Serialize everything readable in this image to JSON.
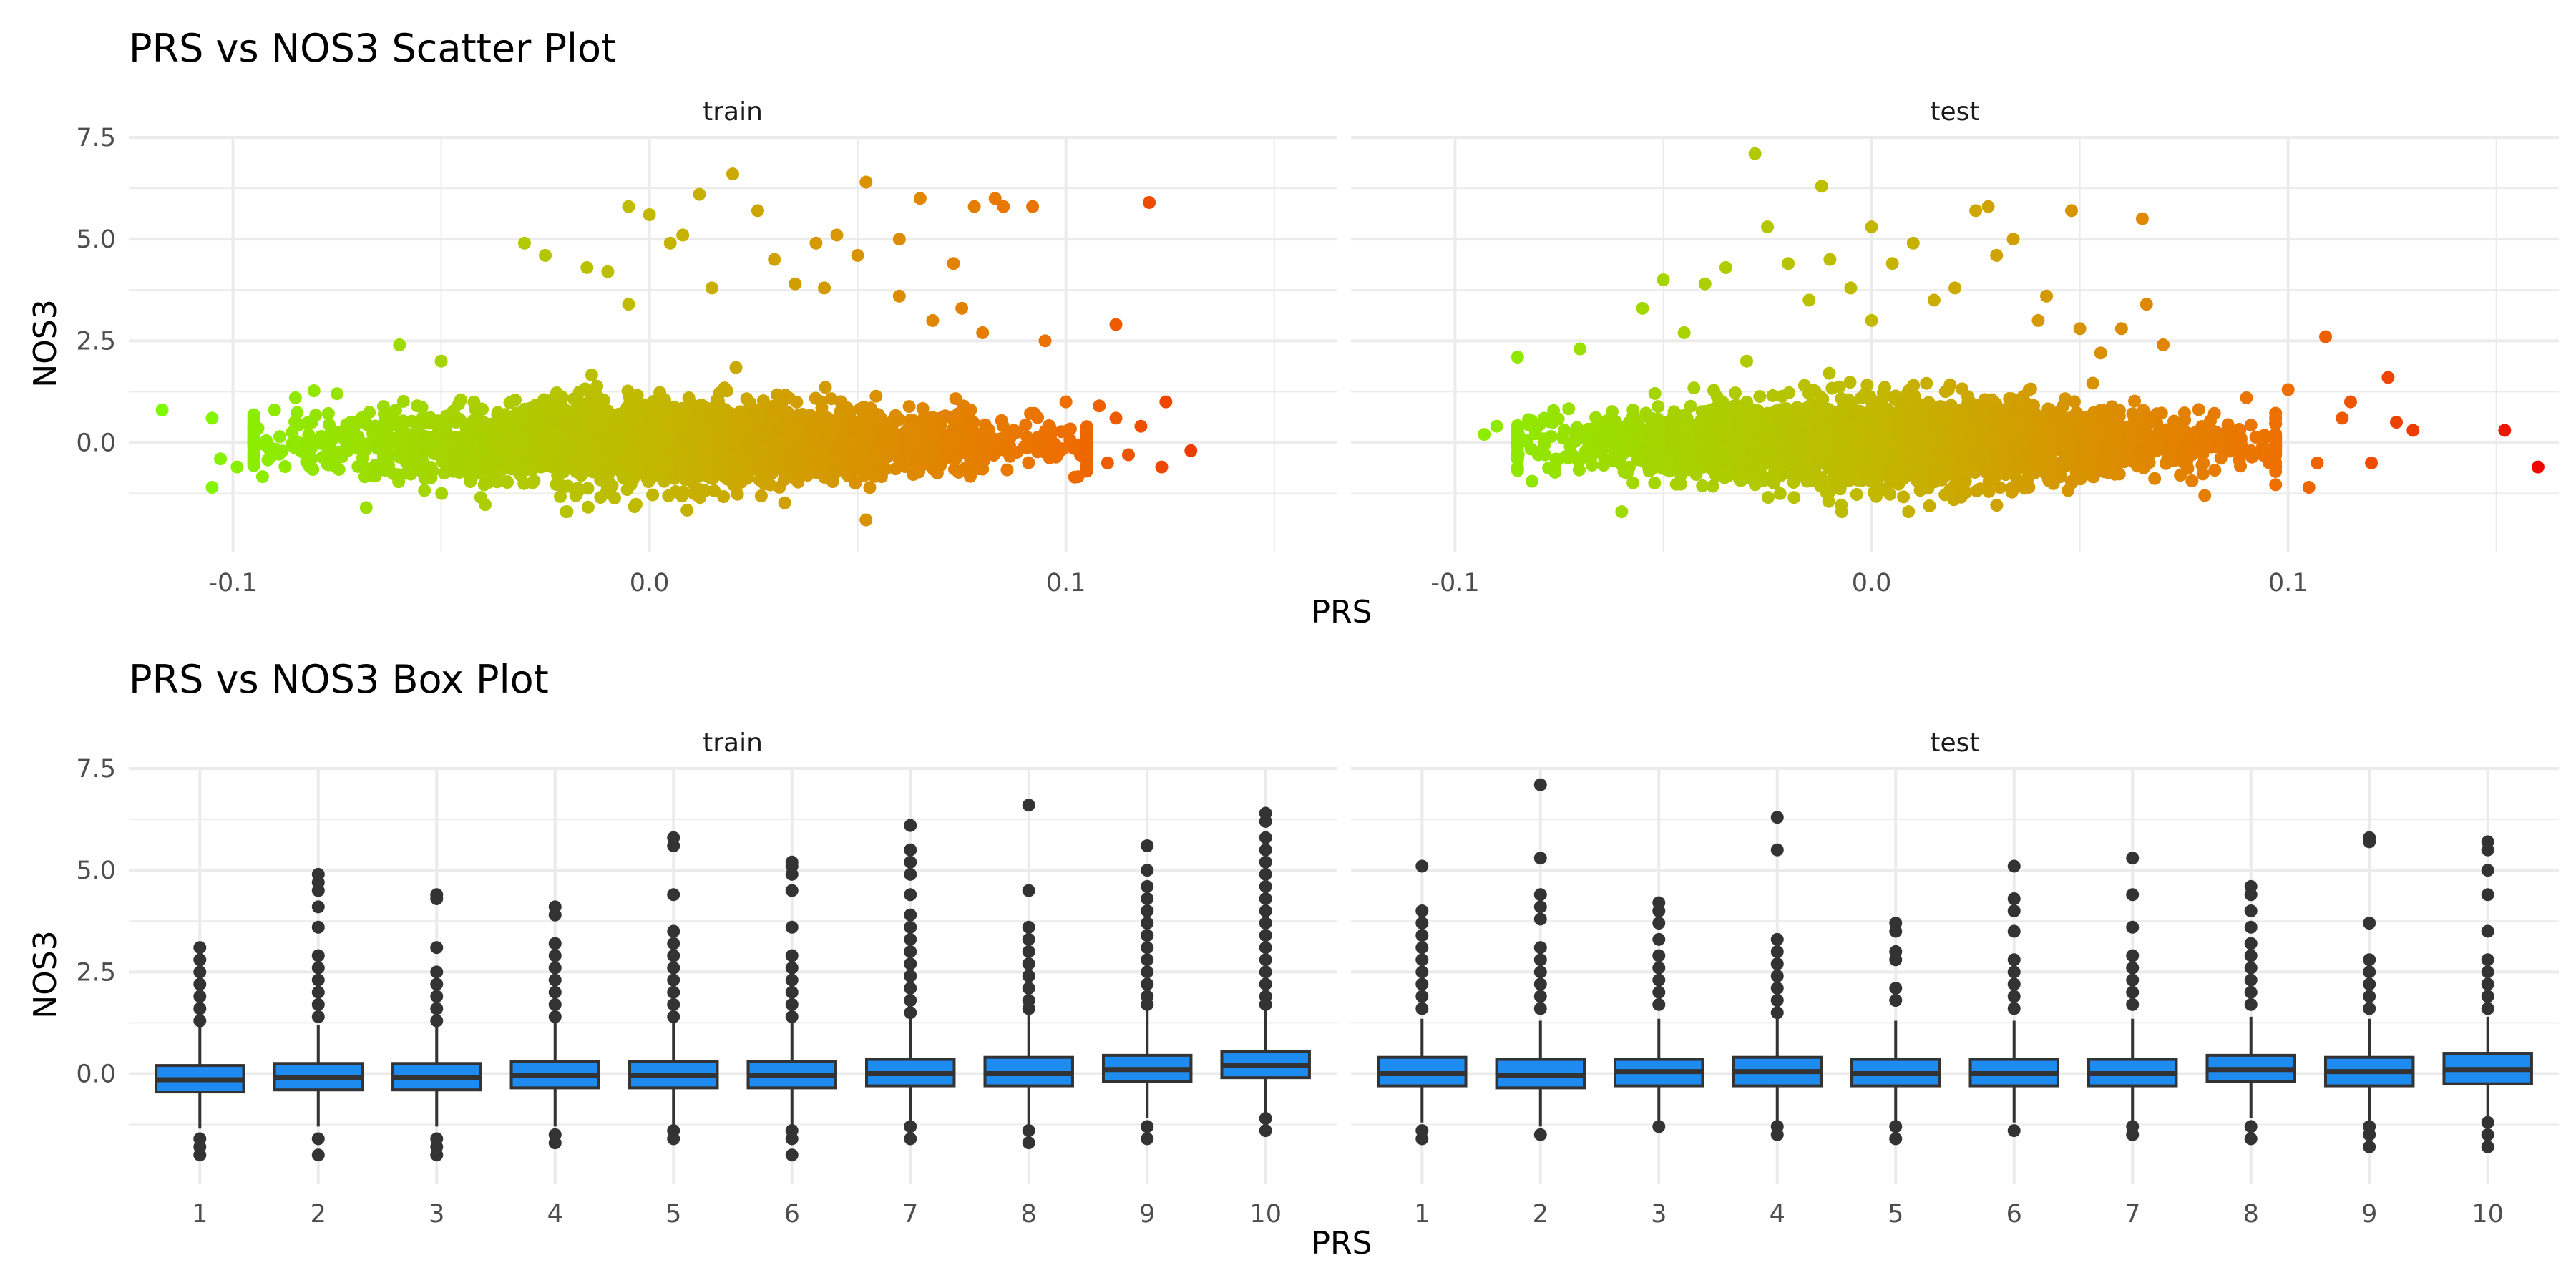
{
  "chart_data": [
    {
      "type": "scatter",
      "title": "PRS vs NOS3 Scatter Plot",
      "xlabel": "PRS",
      "ylabel": "NOS3",
      "facets": [
        {
          "label": "train",
          "x_ticks": [
            "-0.1",
            "0.0",
            "0.1"
          ],
          "y_ticks": [
            "7.5",
            "5.0",
            "2.5",
            "0.0"
          ],
          "xlim": [
            -0.125,
            0.165
          ],
          "ylim": [
            -2.7,
            7.5
          ],
          "cloud": {
            "x_range": [
              -0.09,
              0.1
            ],
            "y_center": 0.0,
            "y_spread": 0.55
          },
          "points": [
            {
              "x": -0.117,
              "y": 0.8
            },
            {
              "x": -0.105,
              "y": 0.6
            },
            {
              "x": -0.105,
              "y": -1.1
            },
            {
              "x": -0.103,
              "y": -0.4
            },
            {
              "x": -0.099,
              "y": -0.6
            },
            {
              "x": -0.09,
              "y": 0.8
            },
            {
              "x": -0.085,
              "y": 1.1
            },
            {
              "x": -0.075,
              "y": 1.2
            },
            {
              "x": -0.068,
              "y": -1.6
            },
            {
              "x": -0.06,
              "y": 2.4
            },
            {
              "x": -0.05,
              "y": 2.0
            },
            {
              "x": -0.03,
              "y": 4.9
            },
            {
              "x": -0.025,
              "y": 4.6
            },
            {
              "x": -0.02,
              "y": -1.7
            },
            {
              "x": -0.015,
              "y": 4.3
            },
            {
              "x": -0.01,
              "y": 4.2
            },
            {
              "x": -0.005,
              "y": 3.4
            },
            {
              "x": -0.005,
              "y": 5.8
            },
            {
              "x": 0.0,
              "y": 5.6
            },
            {
              "x": 0.005,
              "y": 4.9
            },
            {
              "x": 0.008,
              "y": 5.1
            },
            {
              "x": 0.012,
              "y": 6.1
            },
            {
              "x": 0.015,
              "y": 3.8
            },
            {
              "x": 0.02,
              "y": 6.6
            },
            {
              "x": 0.026,
              "y": 5.7
            },
            {
              "x": 0.03,
              "y": 4.5
            },
            {
              "x": 0.035,
              "y": 3.9
            },
            {
              "x": 0.04,
              "y": 4.9
            },
            {
              "x": 0.042,
              "y": 3.8
            },
            {
              "x": 0.045,
              "y": 5.1
            },
            {
              "x": 0.05,
              "y": 4.6
            },
            {
              "x": 0.052,
              "y": 6.4
            },
            {
              "x": 0.052,
              "y": -1.9
            },
            {
              "x": 0.06,
              "y": 3.6
            },
            {
              "x": 0.06,
              "y": 5.0
            },
            {
              "x": 0.065,
              "y": 6.0
            },
            {
              "x": 0.068,
              "y": 3.0
            },
            {
              "x": 0.073,
              "y": 4.4
            },
            {
              "x": 0.075,
              "y": 3.3
            },
            {
              "x": 0.078,
              "y": 5.8
            },
            {
              "x": 0.08,
              "y": 2.7
            },
            {
              "x": 0.083,
              "y": 6.0
            },
            {
              "x": 0.085,
              "y": 5.8
            },
            {
              "x": 0.092,
              "y": 5.8
            },
            {
              "x": 0.095,
              "y": 2.5
            },
            {
              "x": 0.1,
              "y": 1.0
            },
            {
              "x": 0.105,
              "y": -0.2
            },
            {
              "x": 0.108,
              "y": 0.9
            },
            {
              "x": 0.11,
              "y": -0.5
            },
            {
              "x": 0.112,
              "y": 0.6
            },
            {
              "x": 0.115,
              "y": -0.3
            },
            {
              "x": 0.118,
              "y": 0.4
            },
            {
              "x": 0.12,
              "y": 5.9
            },
            {
              "x": 0.112,
              "y": 2.9
            },
            {
              "x": 0.123,
              "y": -0.6
            },
            {
              "x": 0.124,
              "y": 1.0
            },
            {
              "x": 0.13,
              "y": -0.2
            }
          ]
        },
        {
          "label": "test",
          "x_ticks": [
            "-0.1",
            "0.0",
            "0.1"
          ],
          "y_ticks": [
            "7.5",
            "5.0",
            "2.5",
            "0.0"
          ],
          "xlim": [
            -0.125,
            0.165
          ],
          "ylim": [
            -2.7,
            7.5
          ],
          "cloud": {
            "x_range": [
              -0.08,
              0.092
            ],
            "y_center": 0.0,
            "y_spread": 0.55
          },
          "points": [
            {
              "x": -0.093,
              "y": 0.2
            },
            {
              "x": -0.09,
              "y": 0.4
            },
            {
              "x": -0.085,
              "y": 2.1
            },
            {
              "x": -0.08,
              "y": -0.3
            },
            {
              "x": -0.07,
              "y": 2.3
            },
            {
              "x": -0.06,
              "y": -1.7
            },
            {
              "x": -0.055,
              "y": 3.3
            },
            {
              "x": -0.05,
              "y": 4.0
            },
            {
              "x": -0.045,
              "y": 2.7
            },
            {
              "x": -0.04,
              "y": 3.9
            },
            {
              "x": -0.035,
              "y": 4.3
            },
            {
              "x": -0.03,
              "y": 2.0
            },
            {
              "x": -0.028,
              "y": 7.1
            },
            {
              "x": -0.025,
              "y": 5.3
            },
            {
              "x": -0.02,
              "y": 4.4
            },
            {
              "x": -0.015,
              "y": 3.5
            },
            {
              "x": -0.012,
              "y": 6.3
            },
            {
              "x": -0.01,
              "y": 4.5
            },
            {
              "x": -0.005,
              "y": 3.8
            },
            {
              "x": 0.0,
              "y": 3.0
            },
            {
              "x": 0.0,
              "y": 5.3
            },
            {
              "x": 0.005,
              "y": 4.4
            },
            {
              "x": 0.01,
              "y": 4.9
            },
            {
              "x": 0.015,
              "y": 3.5
            },
            {
              "x": 0.02,
              "y": 3.8
            },
            {
              "x": 0.025,
              "y": 5.7
            },
            {
              "x": 0.028,
              "y": 5.8
            },
            {
              "x": 0.03,
              "y": 4.6
            },
            {
              "x": 0.034,
              "y": 5.0
            },
            {
              "x": 0.04,
              "y": 3.0
            },
            {
              "x": 0.042,
              "y": 3.6
            },
            {
              "x": 0.048,
              "y": 5.7
            },
            {
              "x": 0.05,
              "y": 2.8
            },
            {
              "x": 0.055,
              "y": 2.2
            },
            {
              "x": 0.06,
              "y": 2.8
            },
            {
              "x": 0.065,
              "y": 5.5
            },
            {
              "x": 0.066,
              "y": 3.4
            },
            {
              "x": 0.07,
              "y": 2.4
            },
            {
              "x": 0.08,
              "y": -1.3
            },
            {
              "x": 0.09,
              "y": 1.1
            },
            {
              "x": 0.1,
              "y": 1.3
            },
            {
              "x": 0.105,
              "y": -1.1
            },
            {
              "x": 0.107,
              "y": -0.5
            },
            {
              "x": 0.109,
              "y": 2.6
            },
            {
              "x": 0.113,
              "y": 0.6
            },
            {
              "x": 0.115,
              "y": 1.0
            },
            {
              "x": 0.12,
              "y": -0.5
            },
            {
              "x": 0.124,
              "y": 1.6
            },
            {
              "x": 0.126,
              "y": 0.5
            },
            {
              "x": 0.13,
              "y": 0.3
            },
            {
              "x": 0.152,
              "y": 0.3
            },
            {
              "x": 0.16,
              "y": -0.6
            }
          ]
        }
      ]
    },
    {
      "type": "box",
      "title": "PRS vs NOS3 Box Plot",
      "xlabel": "PRS",
      "ylabel": "NOS3",
      "categories": [
        "1",
        "2",
        "3",
        "4",
        "5",
        "6",
        "7",
        "8",
        "9",
        "10"
      ],
      "ylim": [
        -2.7,
        7.5
      ],
      "y_ticks": [
        "7.5",
        "5.0",
        "2.5",
        "0.0"
      ],
      "facets": [
        {
          "label": "train",
          "boxes": [
            {
              "q1": -0.45,
              "median": -0.15,
              "q3": 0.2,
              "lower": -1.35,
              "upper": 1.15,
              "outliers": [
                3.1,
                2.8,
                2.5,
                2.2,
                1.9,
                1.6,
                1.3,
                -1.6,
                -1.8,
                -2.0
              ]
            },
            {
              "q1": -0.4,
              "median": -0.1,
              "q3": 0.25,
              "lower": -1.3,
              "upper": 1.2,
              "outliers": [
                4.9,
                4.7,
                4.5,
                4.1,
                3.6,
                2.9,
                2.6,
                2.3,
                2.0,
                1.7,
                1.4,
                -1.6,
                -2.0
              ]
            },
            {
              "q1": -0.4,
              "median": -0.1,
              "q3": 0.25,
              "lower": -1.3,
              "upper": 1.2,
              "outliers": [
                4.4,
                4.3,
                3.1,
                2.5,
                2.2,
                1.9,
                1.6,
                1.3,
                -1.6,
                -1.8,
                -2.0
              ]
            },
            {
              "q1": -0.35,
              "median": -0.05,
              "q3": 0.3,
              "lower": -1.3,
              "upper": 1.25,
              "outliers": [
                4.1,
                3.9,
                3.2,
                2.9,
                2.6,
                2.3,
                2.0,
                1.7,
                1.4,
                -1.5,
                -1.7
              ]
            },
            {
              "q1": -0.35,
              "median": -0.05,
              "q3": 0.3,
              "lower": -1.3,
              "upper": 1.3,
              "outliers": [
                5.8,
                5.6,
                4.4,
                3.5,
                3.2,
                2.9,
                2.6,
                2.3,
                2.0,
                1.7,
                1.4,
                -1.4,
                -1.6
              ]
            },
            {
              "q1": -0.35,
              "median": -0.05,
              "q3": 0.3,
              "lower": -1.3,
              "upper": 1.35,
              "outliers": [
                5.2,
                5.1,
                4.9,
                4.5,
                3.6,
                2.9,
                2.6,
                2.3,
                2.0,
                1.7,
                1.4,
                -1.4,
                -1.6,
                -2.0
              ]
            },
            {
              "q1": -0.3,
              "median": 0.0,
              "q3": 0.35,
              "lower": -1.2,
              "upper": 1.4,
              "outliers": [
                6.1,
                5.5,
                5.2,
                4.9,
                4.4,
                3.9,
                3.6,
                3.3,
                3.0,
                2.7,
                2.4,
                2.1,
                1.8,
                1.5,
                -1.3,
                -1.6
              ]
            },
            {
              "q1": -0.3,
              "median": 0.0,
              "q3": 0.4,
              "lower": -1.3,
              "upper": 1.5,
              "outliers": [
                6.6,
                4.5,
                3.6,
                3.3,
                3.0,
                2.7,
                2.4,
                2.1,
                1.8,
                1.6,
                -1.4,
                -1.7
              ]
            },
            {
              "q1": -0.2,
              "median": 0.1,
              "q3": 0.45,
              "lower": -1.1,
              "upper": 1.6,
              "outliers": [
                5.6,
                5.0,
                4.6,
                4.3,
                4.0,
                3.7,
                3.4,
                3.1,
                2.8,
                2.5,
                2.2,
                1.9,
                1.7,
                -1.3,
                -1.6
              ]
            },
            {
              "q1": -0.1,
              "median": 0.2,
              "q3": 0.55,
              "lower": -1.0,
              "upper": 1.6,
              "outliers": [
                6.4,
                6.2,
                5.8,
                5.5,
                5.2,
                4.9,
                4.6,
                4.3,
                4.0,
                3.7,
                3.4,
                3.1,
                2.8,
                2.5,
                2.2,
                1.9,
                1.7,
                -1.1,
                -1.4
              ]
            }
          ]
        },
        {
          "label": "test",
          "boxes": [
            {
              "q1": -0.3,
              "median": 0.0,
              "q3": 0.4,
              "lower": -1.2,
              "upper": 1.35,
              "outliers": [
                5.1,
                4.0,
                3.7,
                3.4,
                3.1,
                2.8,
                2.5,
                2.2,
                1.9,
                1.6,
                -1.4,
                -1.6
              ]
            },
            {
              "q1": -0.35,
              "median": -0.05,
              "q3": 0.35,
              "lower": -1.3,
              "upper": 1.3,
              "outliers": [
                7.1,
                5.3,
                4.4,
                4.1,
                3.8,
                3.1,
                2.8,
                2.5,
                2.2,
                1.9,
                1.6,
                -1.5
              ]
            },
            {
              "q1": -0.3,
              "median": 0.05,
              "q3": 0.35,
              "lower": -1.2,
              "upper": 1.35,
              "outliers": [
                4.2,
                4.0,
                3.7,
                3.3,
                2.9,
                2.6,
                2.3,
                2.0,
                1.7,
                -1.3
              ]
            },
            {
              "q1": -0.3,
              "median": 0.05,
              "q3": 0.4,
              "lower": -1.2,
              "upper": 1.35,
              "outliers": [
                6.3,
                5.5,
                3.3,
                3.0,
                2.7,
                2.4,
                2.1,
                1.8,
                1.5,
                -1.3,
                -1.5
              ]
            },
            {
              "q1": -0.3,
              "median": 0.0,
              "q3": 0.35,
              "lower": -1.2,
              "upper": 1.3,
              "outliers": [
                3.7,
                3.5,
                3.0,
                2.8,
                2.1,
                1.8,
                -1.3,
                -1.6
              ]
            },
            {
              "q1": -0.3,
              "median": 0.0,
              "q3": 0.35,
              "lower": -1.2,
              "upper": 1.3,
              "outliers": [
                5.1,
                4.3,
                4.0,
                3.5,
                2.8,
                2.5,
                2.2,
                1.9,
                1.6,
                -1.4
              ]
            },
            {
              "q1": -0.3,
              "median": 0.0,
              "q3": 0.35,
              "lower": -1.2,
              "upper": 1.35,
              "outliers": [
                5.3,
                4.4,
                3.6,
                2.9,
                2.6,
                2.3,
                2.0,
                1.7,
                -1.3,
                -1.5
              ]
            },
            {
              "q1": -0.2,
              "median": 0.1,
              "q3": 0.45,
              "lower": -1.1,
              "upper": 1.4,
              "outliers": [
                4.6,
                4.4,
                4.0,
                3.6,
                3.2,
                2.9,
                2.6,
                2.3,
                2.0,
                1.7,
                -1.3,
                -1.6
              ]
            },
            {
              "q1": -0.3,
              "median": 0.05,
              "q3": 0.4,
              "lower": -1.2,
              "upper": 1.35,
              "outliers": [
                5.8,
                5.7,
                3.7,
                2.8,
                2.5,
                2.2,
                1.9,
                1.6,
                -1.3,
                -1.5,
                -1.8
              ]
            },
            {
              "q1": -0.25,
              "median": 0.1,
              "q3": 0.5,
              "lower": -1.1,
              "upper": 1.4,
              "outliers": [
                5.7,
                5.5,
                5.0,
                4.4,
                3.5,
                2.8,
                2.5,
                2.2,
                1.9,
                1.6,
                -1.2,
                -1.5,
                -1.8
              ]
            }
          ]
        }
      ]
    }
  ]
}
